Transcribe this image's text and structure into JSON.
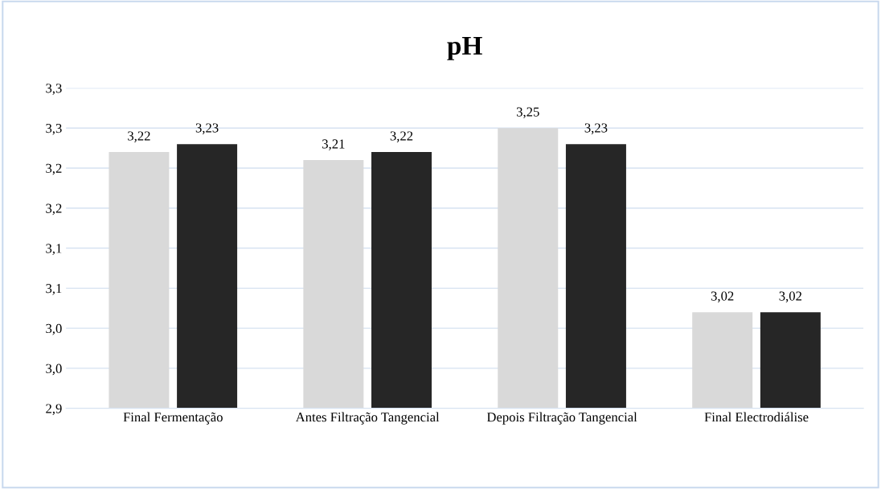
{
  "chart_data": {
    "type": "bar",
    "title": "pH",
    "categories": [
      "Final Fermentação",
      "Antes Filtração Tangencial",
      "Depois Filtração Tangencial",
      "Final Electrodiálise"
    ],
    "series": [
      {
        "color": "#d9d9d9",
        "values": [
          3.22,
          3.21,
          3.25,
          3.02
        ]
      },
      {
        "color": "#262626",
        "values": [
          3.23,
          3.22,
          3.23,
          3.02
        ]
      }
    ],
    "ylim": [
      2.9,
      3.3
    ],
    "yticks": [
      {
        "value": 2.9,
        "label": "2,9"
      },
      {
        "value": 2.95,
        "label": "3,0"
      },
      {
        "value": 3.0,
        "label": "3,0"
      },
      {
        "value": 3.05,
        "label": "3,1"
      },
      {
        "value": 3.1,
        "label": "3,1"
      },
      {
        "value": 3.15,
        "label": "3,2"
      },
      {
        "value": 3.2,
        "label": "3,2"
      },
      {
        "value": 3.25,
        "label": "3,3"
      },
      {
        "value": 3.3,
        "label": "3,3"
      }
    ],
    "value_labels": [
      [
        "3,22",
        "3,21",
        "3,25",
        "3,02"
      ],
      [
        "3,23",
        "3,22",
        "3,23",
        "3,02"
      ]
    ],
    "grid": "y"
  }
}
